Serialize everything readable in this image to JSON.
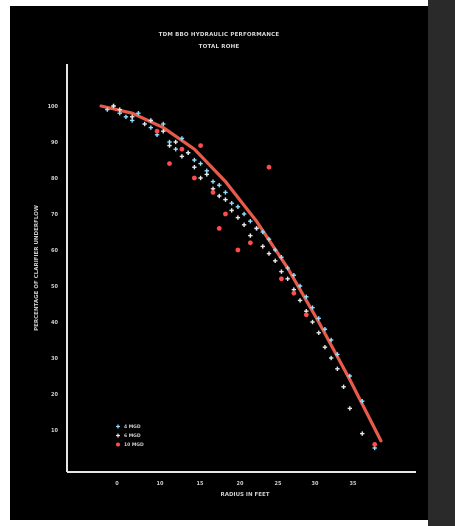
{
  "chart_data": {
    "type": "scatter",
    "title": "TDM BBO HYDRAULIC PERFORMANCE",
    "subtitle": "TOTAL ROHE",
    "xlabel": "RADIUS IN FEET",
    "ylabel": "PERCENTAGE OF CLARIFIER UNDERFLOW",
    "x_ticks": [
      "0",
      "10",
      "15",
      "20",
      "25",
      "30",
      "35"
    ],
    "y_ticks": [
      "100",
      "90",
      "80",
      "70",
      "60",
      "50",
      "40",
      "30",
      "20",
      "10"
    ],
    "xlim": [
      -5,
      50
    ],
    "ylim": [
      0,
      105
    ],
    "grid": false,
    "legend_position": "bottom-left",
    "series": [
      {
        "name": "4 MGD",
        "marker": "plus",
        "color": "#8fe0ff",
        "x": [
          1,
          2,
          3,
          4,
          5,
          6,
          8,
          9,
          10,
          11,
          12,
          13,
          14,
          15,
          16,
          17,
          18,
          19,
          20,
          21,
          22,
          23,
          24,
          25,
          26,
          27,
          28,
          29,
          30,
          31,
          32,
          33,
          34,
          35,
          36,
          37,
          38,
          40,
          42,
          44
        ],
        "y": [
          99,
          100,
          98,
          97,
          96,
          98,
          94,
          92,
          95,
          90,
          88,
          91,
          87,
          85,
          84,
          82,
          79,
          78,
          76,
          73,
          72,
          70,
          68,
          66,
          65,
          63,
          60,
          58,
          55,
          53,
          50,
          47,
          44,
          41,
          38,
          35,
          31,
          25,
          18,
          5
        ]
      },
      {
        "name": "6 MGD",
        "marker": "plus",
        "color": "#e8e8e8",
        "x": [
          2,
          3,
          5,
          7,
          8,
          10,
          11,
          12,
          13,
          14,
          15,
          16,
          17,
          18,
          19,
          20,
          21,
          22,
          23,
          24,
          25,
          26,
          27,
          28,
          29,
          30,
          31,
          32,
          33,
          34,
          35,
          36,
          37,
          38,
          39,
          40,
          42
        ],
        "y": [
          100,
          99,
          97,
          95,
          96,
          93,
          89,
          90,
          86,
          87,
          83,
          80,
          81,
          77,
          75,
          74,
          71,
          69,
          67,
          64,
          66,
          61,
          59,
          57,
          54,
          52,
          49,
          46,
          43,
          40,
          37,
          33,
          30,
          27,
          22,
          16,
          9
        ]
      },
      {
        "name": "10 MGD",
        "marker": "circle",
        "color": "#ff4b4b",
        "x": [
          9,
          11,
          13,
          15,
          16,
          18,
          19,
          20,
          22,
          24,
          27,
          29,
          31,
          33,
          44
        ],
        "y": [
          93,
          84,
          88,
          80,
          89,
          76,
          66,
          70,
          60,
          62,
          83,
          52,
          48,
          42,
          6
        ]
      }
    ],
    "fit_curve": {
      "name": "fit",
      "color": "#e85b4a",
      "x": [
        0,
        5,
        10,
        15,
        20,
        25,
        30,
        35,
        40,
        45
      ],
      "y": [
        100,
        98,
        94,
        88,
        79,
        68,
        55,
        40,
        24,
        7
      ]
    }
  }
}
